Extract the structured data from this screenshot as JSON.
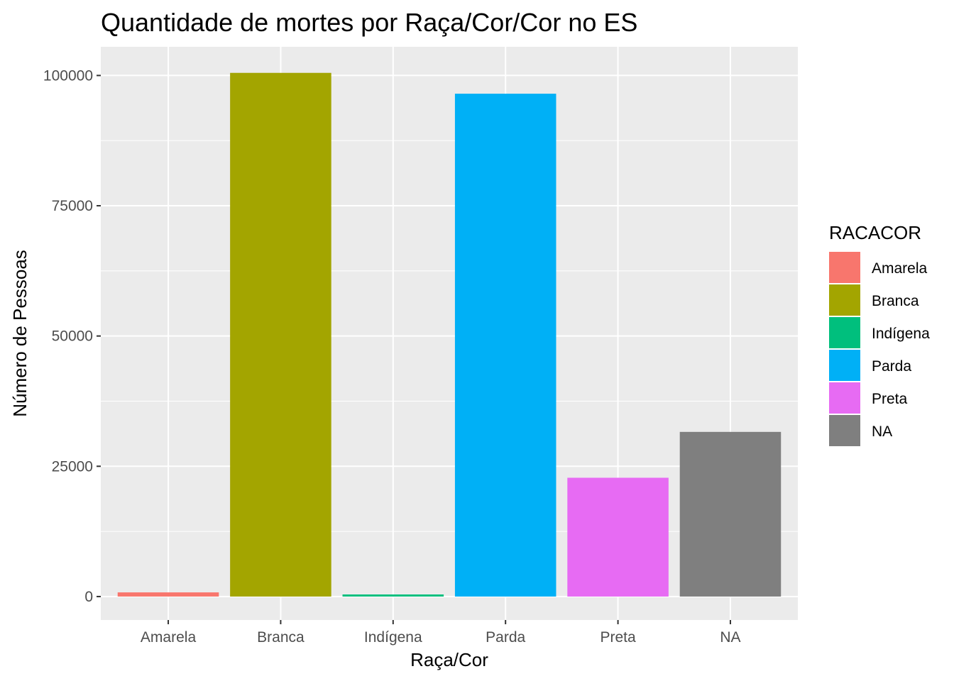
{
  "chart_data": {
    "type": "bar",
    "title": "Quantidade de mortes por Raça/Cor/Cor no ES",
    "xlabel": "Raça/Cor",
    "ylabel": "Número de Pessoas",
    "categories": [
      "Amarela",
      "Branca",
      "Indígena",
      "Parda",
      "Preta",
      "NA"
    ],
    "values": [
      800,
      100500,
      400,
      96500,
      22800,
      31600
    ],
    "colors": [
      "#F8766D",
      "#A3A500",
      "#00BF7D",
      "#00B0F6",
      "#E76BF3",
      "#7F7F7F"
    ],
    "ylim": [
      -4500,
      105500
    ],
    "yticks": [
      0,
      25000,
      50000,
      75000,
      100000
    ],
    "ytick_labels": [
      "0",
      "25000",
      "50000",
      "75000",
      "100000"
    ],
    "grid": true,
    "legend": {
      "title": "RACACOR",
      "placement": "right",
      "items": [
        "Amarela",
        "Branca",
        "Indígena",
        "Parda",
        "Preta",
        "NA"
      ]
    }
  }
}
